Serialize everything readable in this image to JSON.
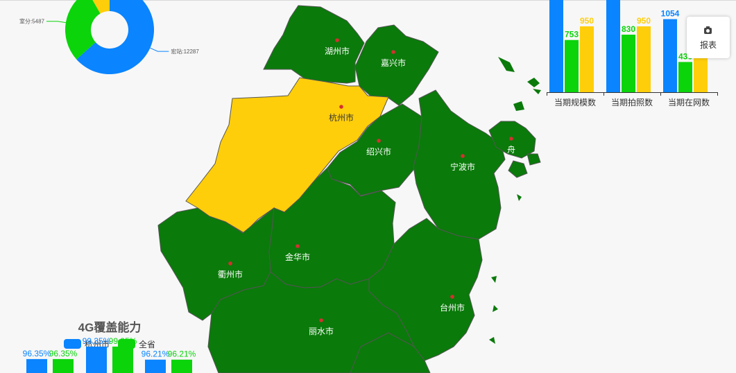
{
  "map": {
    "colors": {
      "normal": "#0a7a0a",
      "selected": "#ffce0b",
      "border": "#555555",
      "label": "#ffffff",
      "selected_label": "#333333",
      "dot": "#d43030"
    },
    "cities": [
      {
        "name": "湖州市",
        "selected": false
      },
      {
        "name": "嘉兴市",
        "selected": false
      },
      {
        "name": "杭州市",
        "selected": true
      },
      {
        "name": "绍兴市",
        "selected": false
      },
      {
        "name": "宁波市",
        "selected": false
      },
      {
        "name": "舟",
        "selected": false
      },
      {
        "name": "衢州市",
        "selected": false
      },
      {
        "name": "金华市",
        "selected": false
      },
      {
        "name": "台州市",
        "selected": false
      },
      {
        "name": "丽水市",
        "selected": false
      }
    ]
  },
  "report_button": {
    "label": "报表",
    "icon": "camera-icon"
  },
  "chart_data": [
    {
      "type": "pie",
      "variant": "donut",
      "slices": [
        {
          "name": "宏站",
          "value": 12287,
          "label": "宏站:12287",
          "color": "#0a84ff"
        },
        {
          "name": "室分",
          "value": 5487,
          "label": "室分:5487",
          "color": "#0bd40b"
        },
        {
          "name": "",
          "value": 1600,
          "label": "",
          "color": "#ffce0b"
        }
      ]
    },
    {
      "type": "bar",
      "categories": [
        "当期规模数",
        "当期拍照数",
        "当期在网数"
      ],
      "series": [
        {
          "color": "#0a84ff",
          "values": [
            null,
            null,
            1054
          ]
        },
        {
          "color": "#0bd40b",
          "values": [
            753,
            830,
            436
          ]
        },
        {
          "color": "#ffce0b",
          "values": [
            950,
            950,
            950
          ]
        }
      ],
      "ylim": [
        0,
        1300
      ]
    },
    {
      "type": "bar",
      "title": "4G覆盖能力",
      "legend": [
        {
          "name": "杭州市",
          "color": "#0a84ff"
        },
        {
          "name": "全省",
          "color": "#0bd40b"
        }
      ],
      "series": [
        {
          "name": "杭州市",
          "color": "#0a84ff",
          "values": [
            96.35,
            99.35,
            96.21
          ],
          "labels": [
            "96.35%",
            "99.35%",
            "96.21%"
          ]
        },
        {
          "name": "全省",
          "color": "#0bd40b",
          "values": [
            96.35,
            99.35,
            96.21
          ],
          "labels": [
            "96.35%",
            "99.35%",
            "96.21%"
          ]
        }
      ]
    }
  ]
}
